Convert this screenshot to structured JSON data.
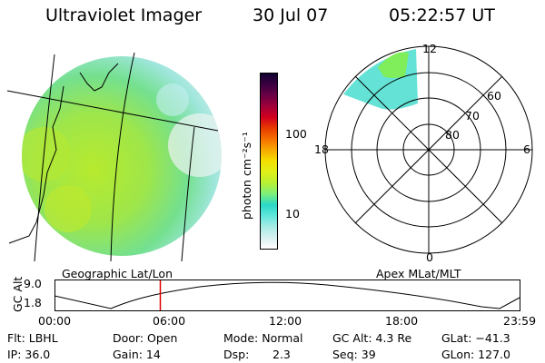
{
  "header": {
    "title": "Ultraviolet Imager",
    "date": "30 Jul 07",
    "time": "05:22:57 UT"
  },
  "colorbar": {
    "label": "photon cm⁻²s⁻¹",
    "ticks": [
      "100",
      "10"
    ],
    "colors": [
      "#ffffff",
      "#d8f0f0",
      "#a8ece6",
      "#5fe6da",
      "#2ad7c8",
      "#7df07a",
      "#b8f034",
      "#dff018",
      "#f4e000",
      "#f7a800",
      "#f57000",
      "#e83a00",
      "#d1001e",
      "#a0003a",
      "#6a0045",
      "#3a0040",
      "#100030"
    ]
  },
  "left_map": {
    "caption": "Geographic Lat/Lon"
  },
  "right_map": {
    "caption": "Apex MLat/MLT",
    "mlt_labels": {
      "top": "12",
      "left": "18",
      "right": "6",
      "bottom": "0"
    },
    "lat_labels": [
      "60",
      "70",
      "80"
    ]
  },
  "altitude_plot": {
    "ylabel": "GC Alt",
    "yticks": [
      "9.0",
      "1.8"
    ],
    "xticks": [
      "00:00",
      "06:00",
      "12:00",
      "18:00",
      "23:59"
    ],
    "current_time_fraction": 0.226
  },
  "info": {
    "flt": "Flt: LBHL",
    "ip": "IP: 36.0",
    "door": "Door: Open",
    "gain": "Gain: 14",
    "mode": "Mode: Normal",
    "dsp_label": "Dsp:",
    "dsp_value": "2.3",
    "gc_alt": "GC Alt: 4.3 Re",
    "seq": "Seq: 39",
    "glat": "GLat: −41.3",
    "glon": "GLon: 127.0"
  }
}
